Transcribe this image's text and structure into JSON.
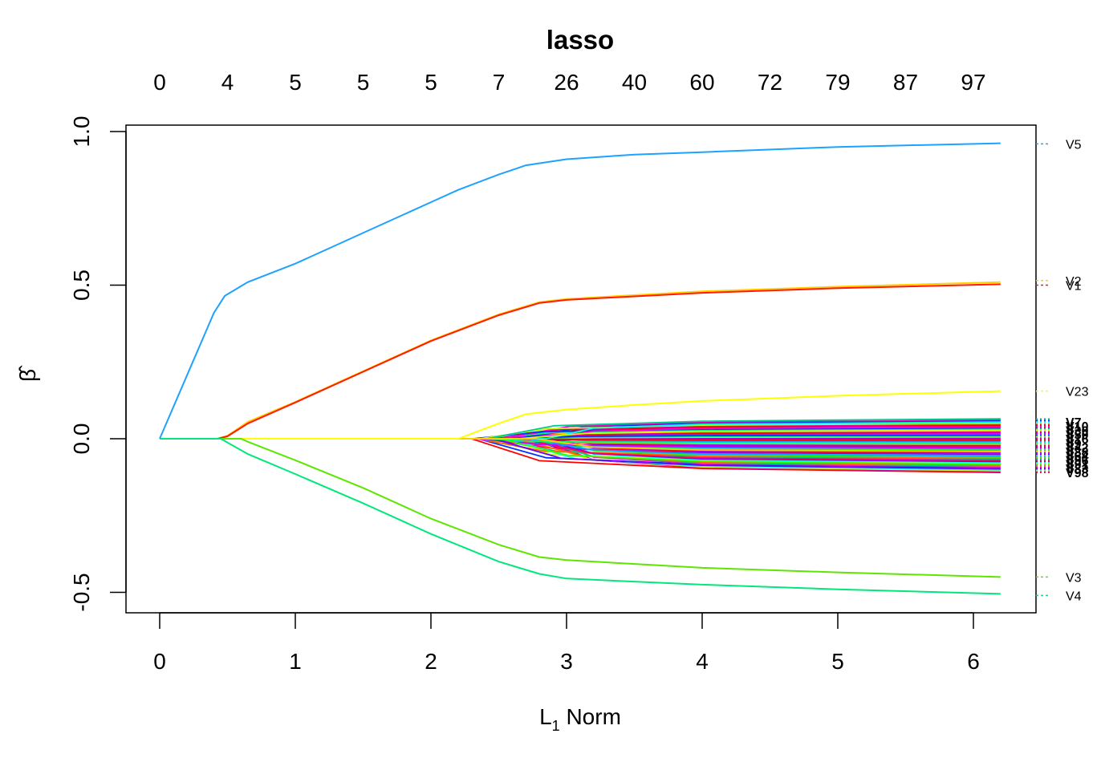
{
  "chart_data": {
    "type": "line",
    "title": "lasso",
    "xlabel": "L1 Norm",
    "xlabel_main": "L",
    "xlabel_sub": "1",
    "xlabel_rest": " Norm",
    "ylabel": "β̂",
    "xlim": [
      -0.25,
      6.5
    ],
    "ylim": [
      -0.57,
      1.0
    ],
    "x_ticks": [
      "0",
      "1",
      "2",
      "3",
      "4",
      "5",
      "6"
    ],
    "y_ticks": [
      "-0.5",
      "0.0",
      "0.5",
      "1.0"
    ],
    "top_axis": {
      "positions": [
        0,
        0.5,
        1,
        1.5,
        2,
        2.5,
        3,
        3.5,
        4,
        4.5,
        5,
        5.5,
        6
      ],
      "labels": [
        "0",
        "4",
        "5",
        "5",
        "5",
        "7",
        "26",
        "40",
        "60",
        "72",
        "79",
        "87",
        "97"
      ]
    },
    "labeled_series": [
      {
        "name": "V5",
        "color": "#1ea2ff",
        "label_color": "#1ea2ff",
        "label_value": 0.96,
        "points": [
          [
            0,
            0
          ],
          [
            0.4,
            0.41
          ],
          [
            0.48,
            0.465
          ],
          [
            0.65,
            0.51
          ],
          [
            1,
            0.57
          ],
          [
            1.5,
            0.67
          ],
          [
            2,
            0.77
          ],
          [
            2.2,
            0.81
          ],
          [
            2.5,
            0.86
          ],
          [
            2.7,
            0.89
          ],
          [
            3,
            0.91
          ],
          [
            3.5,
            0.925
          ],
          [
            4,
            0.933
          ],
          [
            5,
            0.95
          ],
          [
            6.2,
            0.962
          ]
        ]
      },
      {
        "name": "V2",
        "color": "#ffd000",
        "label_color": "#ffd000",
        "label_value": 0.515,
        "points": [
          [
            0,
            0
          ],
          [
            0.42,
            0
          ],
          [
            0.5,
            0.01
          ],
          [
            0.65,
            0.055
          ],
          [
            1,
            0.12
          ],
          [
            1.5,
            0.22
          ],
          [
            2,
            0.32
          ],
          [
            2.5,
            0.405
          ],
          [
            2.8,
            0.445
          ],
          [
            3,
            0.455
          ],
          [
            4,
            0.48
          ],
          [
            5,
            0.495
          ],
          [
            6.2,
            0.51
          ]
        ]
      },
      {
        "name": "V1",
        "color": "#ff1a00",
        "label_color": "#ff1a00",
        "label_value": 0.5,
        "points": [
          [
            0,
            0
          ],
          [
            0.43,
            0
          ],
          [
            0.5,
            0.008
          ],
          [
            0.65,
            0.05
          ],
          [
            1,
            0.118
          ],
          [
            1.5,
            0.218
          ],
          [
            2,
            0.318
          ],
          [
            2.5,
            0.402
          ],
          [
            2.8,
            0.442
          ],
          [
            3,
            0.452
          ],
          [
            4,
            0.475
          ],
          [
            5,
            0.49
          ],
          [
            6.2,
            0.503
          ]
        ]
      },
      {
        "name": "V23",
        "color": "#ffff00",
        "label_color": "#e8e800",
        "label_value": 0.155,
        "points": [
          [
            0,
            0
          ],
          [
            2.2,
            0
          ],
          [
            2.5,
            0.05
          ],
          [
            2.7,
            0.08
          ],
          [
            3,
            0.095
          ],
          [
            3.5,
            0.11
          ],
          [
            4,
            0.123
          ],
          [
            5,
            0.14
          ],
          [
            6.2,
            0.155
          ]
        ]
      },
      {
        "name": "V3",
        "color": "#5ee600",
        "label_color": "#5ee600",
        "label_value": -0.45,
        "points": [
          [
            0,
            0
          ],
          [
            0.6,
            0
          ],
          [
            0.65,
            -0.01
          ],
          [
            1,
            -0.07
          ],
          [
            1.5,
            -0.16
          ],
          [
            2,
            -0.26
          ],
          [
            2.5,
            -0.345
          ],
          [
            2.8,
            -0.385
          ],
          [
            3,
            -0.395
          ],
          [
            4,
            -0.42
          ],
          [
            5,
            -0.435
          ],
          [
            6.2,
            -0.45
          ]
        ]
      },
      {
        "name": "V4",
        "color": "#00e87a",
        "label_color": "#00e87a",
        "label_value": -0.51,
        "points": [
          [
            0,
            0
          ],
          [
            0.45,
            0
          ],
          [
            0.65,
            -0.05
          ],
          [
            1,
            -0.115
          ],
          [
            1.5,
            -0.21
          ],
          [
            2,
            -0.31
          ],
          [
            2.5,
            -0.4
          ],
          [
            2.8,
            -0.44
          ],
          [
            3,
            -0.455
          ],
          [
            4,
            -0.475
          ],
          [
            5,
            -0.49
          ],
          [
            6.2,
            -0.505
          ]
        ]
      }
    ],
    "dense_series": {
      "count": 60,
      "start_x_range": [
        2.3,
        2.9
      ],
      "end_value_range": [
        -0.11,
        0.065
      ],
      "x_end": 6.2,
      "colors": [
        "#ff0000",
        "#ff0066",
        "#ff00cc",
        "#cc00ff",
        "#6600ff",
        "#0033ff",
        "#00aaff",
        "#00ffee",
        "#00ff66",
        "#33ff00",
        "#ccff00",
        "#ffcc00",
        "#ff6600",
        "#dd0099",
        "#9900dd",
        "#00cc88"
      ],
      "label_names": [
        "V7",
        "V10",
        "V30",
        "V50",
        "V16",
        "V9",
        "V42",
        "V88",
        "V64",
        "V96",
        "V91",
        "V83",
        "V98"
      ]
    }
  }
}
